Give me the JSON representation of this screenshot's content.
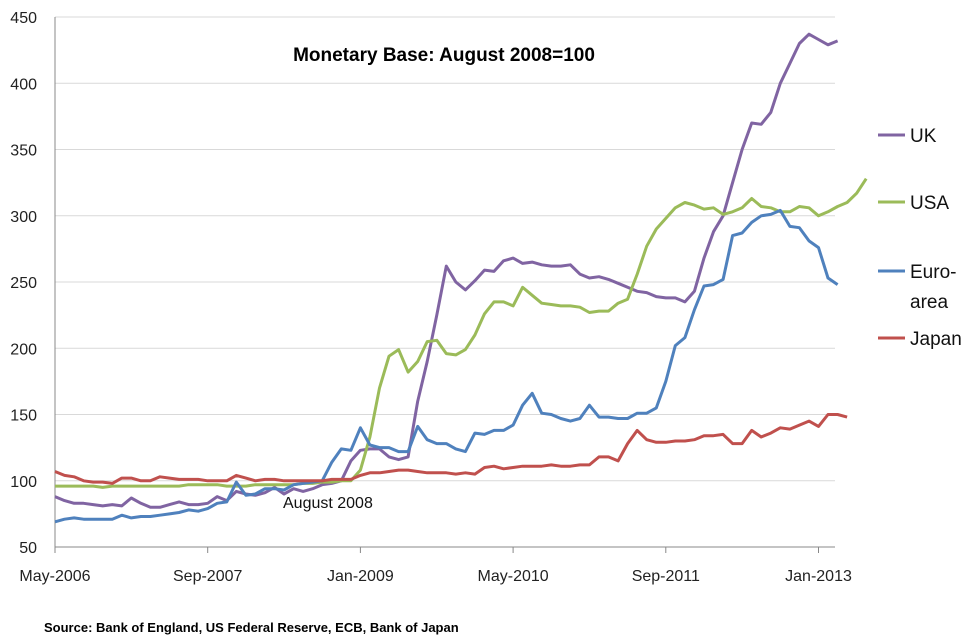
{
  "chart_data": {
    "type": "line",
    "title": "Monetary Base: August 2008=100",
    "xlabel": "",
    "ylabel": "",
    "ylim": [
      50,
      450
    ],
    "y_ticks": [
      50,
      100,
      150,
      200,
      250,
      300,
      350,
      400,
      450
    ],
    "x_tick_labels": [
      "May-2006",
      "Sep-2007",
      "Jan-2009",
      "May-2010",
      "Sep-2011",
      "Jan-2013"
    ],
    "x_start": "May-2006",
    "x_end": "Mar-2013",
    "grid": "horizontal",
    "legend_position": "right",
    "annotation": "August 2008",
    "source": "Source: Bank of England, US Federal Reserve, ECB, Bank of Japan",
    "series": [
      {
        "name": "UK",
        "color": "#8064a2",
        "values": [
          88,
          85,
          83,
          83,
          82,
          81,
          82,
          81,
          87,
          83,
          80,
          80,
          82,
          84,
          82,
          82,
          83,
          88,
          85,
          92,
          90,
          89,
          91,
          95,
          90,
          94,
          92,
          94,
          97,
          98,
          100,
          115,
          123,
          124,
          124,
          118,
          116,
          118,
          160,
          190,
          225,
          262,
          250,
          244,
          251,
          259,
          258,
          266,
          268,
          264,
          265,
          263,
          262,
          262,
          263,
          256,
          253,
          254,
          252,
          249,
          246,
          243,
          242,
          239,
          238,
          238,
          235,
          243,
          268,
          288,
          300,
          325,
          350,
          370,
          369,
          378,
          400,
          415,
          430,
          437,
          433,
          429,
          432
        ]
      },
      {
        "name": "USA",
        "color": "#9bbb59",
        "values": [
          96,
          96,
          96,
          96,
          96,
          95,
          96,
          96,
          96,
          96,
          96,
          96,
          96,
          96,
          97,
          97,
          97,
          97,
          96,
          96,
          96,
          97,
          97,
          97,
          97,
          97,
          98,
          98,
          99,
          99,
          100,
          100,
          108,
          133,
          170,
          194,
          199,
          182,
          190,
          205,
          206,
          196,
          195,
          199,
          210,
          226,
          235,
          235,
          232,
          246,
          240,
          234,
          233,
          232,
          232,
          231,
          227,
          228,
          228,
          234,
          237,
          256,
          277,
          290,
          298,
          306,
          310,
          308,
          305,
          306,
          301,
          303,
          306,
          313,
          307,
          306,
          303,
          303,
          307,
          306,
          300,
          303,
          307,
          310,
          317,
          328
        ]
      },
      {
        "name": "Euro-area",
        "color": "#4f81bd",
        "values": [
          69,
          71,
          72,
          71,
          71,
          71,
          71,
          74,
          72,
          73,
          73,
          74,
          75,
          76,
          78,
          77,
          79,
          83,
          84,
          99,
          89,
          90,
          94,
          94,
          93,
          97,
          98,
          99,
          100,
          114,
          124,
          123,
          140,
          127,
          125,
          125,
          122,
          122,
          141,
          131,
          128,
          128,
          124,
          122,
          136,
          135,
          138,
          138,
          142,
          157,
          166,
          151,
          150,
          147,
          145,
          147,
          157,
          148,
          148,
          147,
          147,
          151,
          151,
          155,
          175,
          202,
          208,
          229,
          247,
          248,
          252,
          285,
          287,
          295,
          300,
          301,
          304,
          292,
          291,
          281,
          276,
          253,
          248
        ]
      },
      {
        "name": "Japan",
        "color": "#c0504d",
        "values": [
          107,
          104,
          103,
          100,
          99,
          99,
          98,
          102,
          102,
          100,
          100,
          103,
          102,
          101,
          101,
          101,
          100,
          100,
          100,
          104,
          102,
          100,
          101,
          101,
          100,
          100,
          100,
          100,
          100,
          101,
          101,
          101,
          104,
          106,
          106,
          107,
          108,
          108,
          107,
          106,
          106,
          106,
          105,
          106,
          105,
          110,
          111,
          109,
          110,
          111,
          111,
          111,
          112,
          111,
          111,
          112,
          112,
          118,
          118,
          115,
          128,
          138,
          131,
          129,
          129,
          130,
          130,
          131,
          134,
          134,
          135,
          128,
          128,
          138,
          133,
          136,
          140,
          139,
          142,
          145,
          141,
          150,
          150,
          148
        ]
      }
    ]
  }
}
